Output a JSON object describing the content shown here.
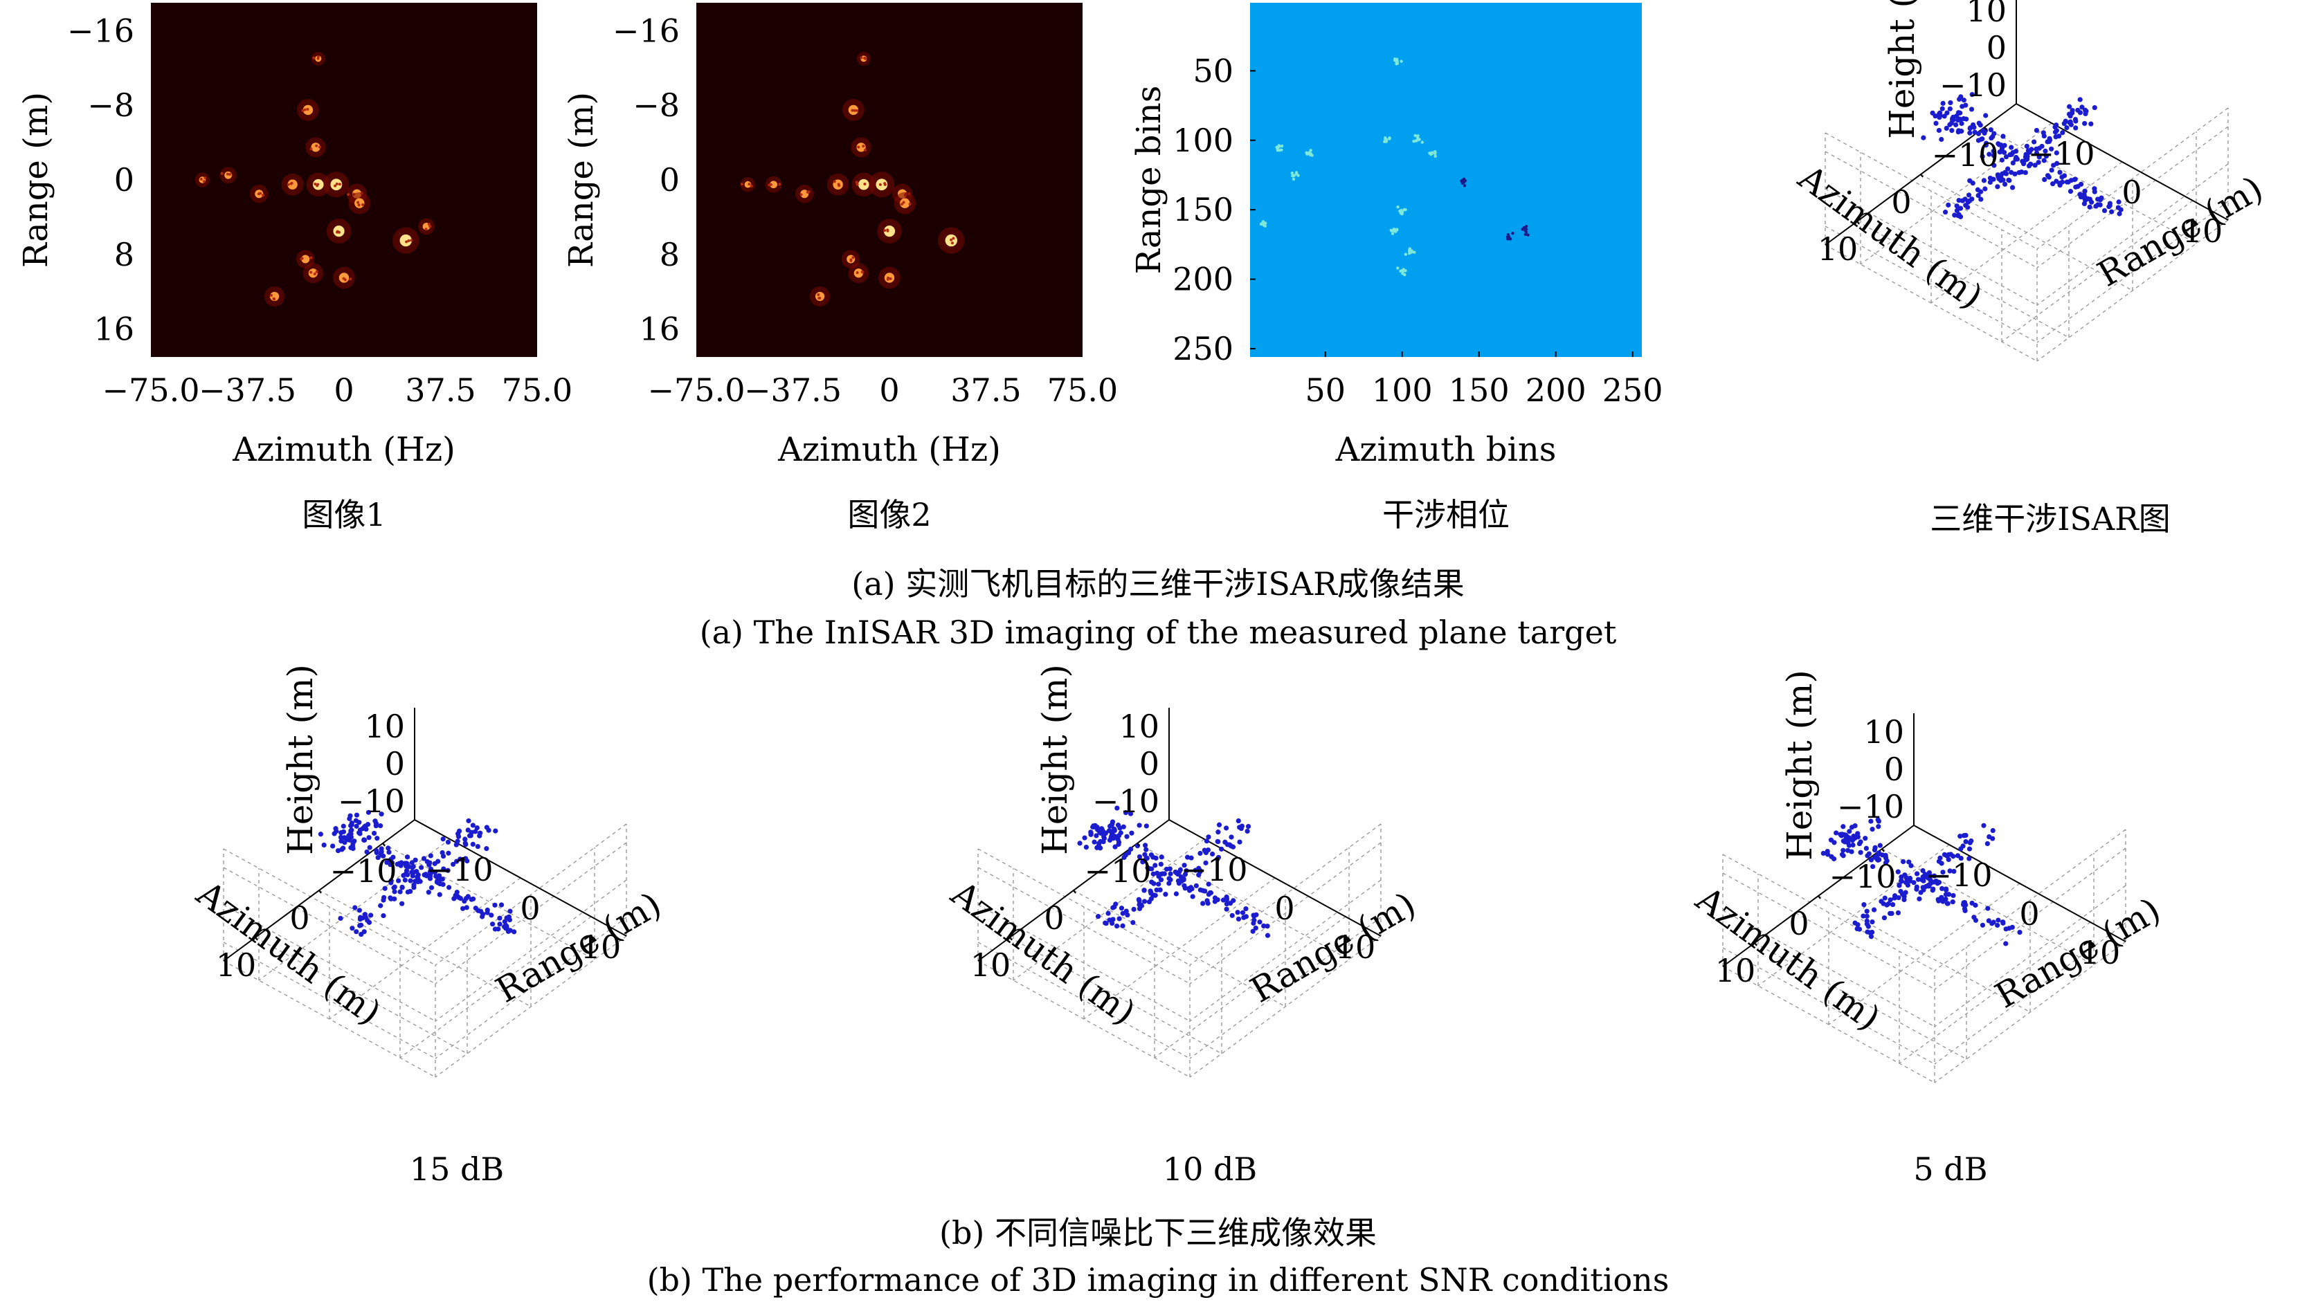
{
  "figure": {
    "caption_a_cn": "(a) 实测飞机目标的三维干涉ISAR成像结果",
    "caption_a_en": "(a) The InISAR 3D imaging of the measured plane target",
    "caption_b_cn": "(b) 不同信噪比下三维成像效果",
    "caption_b_en": "(b) The performance of 3D imaging in different SNR conditions"
  },
  "colors": {
    "background": "#ffffff",
    "heatmap_bg": "#1a0000",
    "heatmap_hot": "#ff9a3c",
    "phase_bg": "#009ff0",
    "scatter_point": "#1c1ccf",
    "axis": "#000000",
    "grid": "#9a9a9a"
  },
  "chart_data": [
    {
      "type": "heatmap",
      "id": "image1",
      "subcaption": "图像1",
      "xlabel": "Azimuth (Hz)",
      "ylabel": "Range (m)",
      "xticks": [
        "−75.0",
        "−37.5",
        "0",
        "37.5",
        "75.0"
      ],
      "xtick_values": [
        -75,
        -37.5,
        0,
        37.5,
        75
      ],
      "yticks": [
        "−16",
        "−8",
        "0",
        "8",
        "16"
      ],
      "ytick_values": [
        -16,
        -8,
        0,
        8,
        16
      ],
      "xlim": [
        -75,
        75
      ],
      "ylim": [
        -19,
        19
      ],
      "bright_scatterers": [
        {
          "x": -14,
          "y": -7.5,
          "v": 0.7
        },
        {
          "x": -11,
          "y": -3.5,
          "v": 0.6
        },
        {
          "x": -20,
          "y": 0.5,
          "v": 0.7
        },
        {
          "x": -10,
          "y": 0.5,
          "v": 0.8
        },
        {
          "x": -3,
          "y": 0.5,
          "v": 0.9
        },
        {
          "x": 5,
          "y": 1.5,
          "v": 0.6
        },
        {
          "x": 6,
          "y": 2.5,
          "v": 0.7
        },
        {
          "x": -45,
          "y": -0.5,
          "v": 0.4
        },
        {
          "x": -55,
          "y": 0,
          "v": 0.3
        },
        {
          "x": -33,
          "y": 1.5,
          "v": 0.5
        },
        {
          "x": -2,
          "y": 5.5,
          "v": 0.85
        },
        {
          "x": 24,
          "y": 6.5,
          "v": 0.95
        },
        {
          "x": 32,
          "y": 5.0,
          "v": 0.4
        },
        {
          "x": -15,
          "y": 8.5,
          "v": 0.5
        },
        {
          "x": -12,
          "y": 10.0,
          "v": 0.6
        },
        {
          "x": 0,
          "y": 10.5,
          "v": 0.7
        },
        {
          "x": -27,
          "y": 12.5,
          "v": 0.6
        },
        {
          "x": -10,
          "y": -13,
          "v": 0.25
        }
      ]
    },
    {
      "type": "heatmap",
      "id": "image2",
      "subcaption": "图像2",
      "xlabel": "Azimuth (Hz)",
      "ylabel": "Range (m)",
      "xticks": [
        "−75.0",
        "−37.5",
        "0",
        "37.5",
        "75.0"
      ],
      "xtick_values": [
        -75,
        -37.5,
        0,
        37.5,
        75
      ],
      "yticks": [
        "−16",
        "−8",
        "0",
        "8",
        "16"
      ],
      "ytick_values": [
        -16,
        -8,
        0,
        8,
        16
      ],
      "xlim": [
        -75,
        75
      ],
      "ylim": [
        -19,
        19
      ],
      "bright_scatterers": [
        {
          "x": -14,
          "y": -7.5,
          "v": 0.7
        },
        {
          "x": -11,
          "y": -3.5,
          "v": 0.6
        },
        {
          "x": -20,
          "y": 0.5,
          "v": 0.7
        },
        {
          "x": -10,
          "y": 0.5,
          "v": 0.8
        },
        {
          "x": -3,
          "y": 0.5,
          "v": 0.9
        },
        {
          "x": 5,
          "y": 1.5,
          "v": 0.6
        },
        {
          "x": 6,
          "y": 2.5,
          "v": 0.7
        },
        {
          "x": -45,
          "y": 0.5,
          "v": 0.4
        },
        {
          "x": -55,
          "y": 0.5,
          "v": 0.3
        },
        {
          "x": -33,
          "y": 1.5,
          "v": 0.5
        },
        {
          "x": 0,
          "y": 5.5,
          "v": 0.85
        },
        {
          "x": 24,
          "y": 6.5,
          "v": 0.95
        },
        {
          "x": -15,
          "y": 8.5,
          "v": 0.5
        },
        {
          "x": -12,
          "y": 10.0,
          "v": 0.6
        },
        {
          "x": 0,
          "y": 10.5,
          "v": 0.7
        },
        {
          "x": -27,
          "y": 12.5,
          "v": 0.6
        },
        {
          "x": -10,
          "y": -13,
          "v": 0.25
        }
      ]
    },
    {
      "type": "heatmap",
      "id": "phase",
      "subcaption": "干涉相位",
      "xlabel": "Azimuth bins",
      "ylabel": "Range bins",
      "xticks": [
        "50",
        "100",
        "150",
        "200",
        "250"
      ],
      "xtick_values": [
        50,
        100,
        150,
        200,
        250
      ],
      "yticks": [
        "50",
        "100",
        "150",
        "200",
        "250"
      ],
      "ytick_values": [
        50,
        100,
        150,
        200,
        250
      ],
      "xlim": [
        1,
        256
      ],
      "ylim": [
        1,
        256
      ],
      "bright_scatterers": [
        {
          "x": 20,
          "y": 105,
          "v": 0.6
        },
        {
          "x": 30,
          "y": 125,
          "v": 0.6
        },
        {
          "x": 40,
          "y": 110,
          "v": 0.5
        },
        {
          "x": 90,
          "y": 100,
          "v": 0.6
        },
        {
          "x": 110,
          "y": 100,
          "v": 0.7
        },
        {
          "x": 120,
          "y": 110,
          "v": 0.6
        },
        {
          "x": 100,
          "y": 150,
          "v": 0.6
        },
        {
          "x": 95,
          "y": 165,
          "v": 0.5
        },
        {
          "x": 105,
          "y": 180,
          "v": 0.6
        },
        {
          "x": 100,
          "y": 195,
          "v": 0.5
        },
        {
          "x": 10,
          "y": 160,
          "v": 0.4
        },
        {
          "x": 96,
          "y": 44,
          "v": 0.4
        },
        {
          "x": 180,
          "y": 165,
          "v": -0.8
        },
        {
          "x": 170,
          "y": 170,
          "v": -0.7
        },
        {
          "x": 140,
          "y": 130,
          "v": -0.6
        }
      ]
    },
    {
      "type": "scatter3d",
      "id": "3d-main",
      "subcaption": "三维干涉ISAR图",
      "xlabel": "Azimuth (m)",
      "ylabel": "Range (m)",
      "zlabel": "Height (m)",
      "xticks": [
        "−10",
        "0",
        "10"
      ],
      "yticks": [
        "−10",
        "0",
        "10"
      ],
      "zticks": [
        "−10",
        "0",
        "10"
      ],
      "xlim": [
        -15,
        15
      ],
      "ylim": [
        -15,
        15
      ],
      "zlim": [
        -15,
        15
      ],
      "point_count": 260
    },
    {
      "type": "scatter3d",
      "id": "3d-15db",
      "subcaption": "15 dB",
      "xlabel": "Azimuth (m)",
      "ylabel": "Range (m)",
      "zlabel": "Height (m)",
      "xticks": [
        "−10",
        "0",
        "10"
      ],
      "yticks": [
        "−10",
        "0",
        "10"
      ],
      "zticks": [
        "−10",
        "0",
        "10"
      ],
      "xlim": [
        -15,
        15
      ],
      "ylim": [
        -15,
        15
      ],
      "zlim": [
        -15,
        15
      ],
      "point_count": 260
    },
    {
      "type": "scatter3d",
      "id": "3d-10db",
      "subcaption": "10 dB",
      "xlabel": "Azimuth (m)",
      "ylabel": "Range (m)",
      "zlabel": "Height (m)",
      "xticks": [
        "−10",
        "0",
        "10"
      ],
      "yticks": [
        "−10",
        "0",
        "10"
      ],
      "zticks": [
        "−10",
        "0",
        "10"
      ],
      "xlim": [
        -15,
        15
      ],
      "ylim": [
        -15,
        15
      ],
      "zlim": [
        -15,
        15
      ],
      "point_count": 240
    },
    {
      "type": "scatter3d",
      "id": "3d-5db",
      "subcaption": "5 dB",
      "xlabel": "Azimuth (m)",
      "ylabel": "Range (m)",
      "zlabel": "Height (m)",
      "xticks": [
        "−10",
        "0",
        "10"
      ],
      "yticks": [
        "−10",
        "0",
        "10"
      ],
      "zticks": [
        "−10",
        "0",
        "10"
      ],
      "xlim": [
        -15,
        15
      ],
      "ylim": [
        -15,
        15
      ],
      "zlim": [
        -15,
        15
      ],
      "point_count": 220
    }
  ]
}
